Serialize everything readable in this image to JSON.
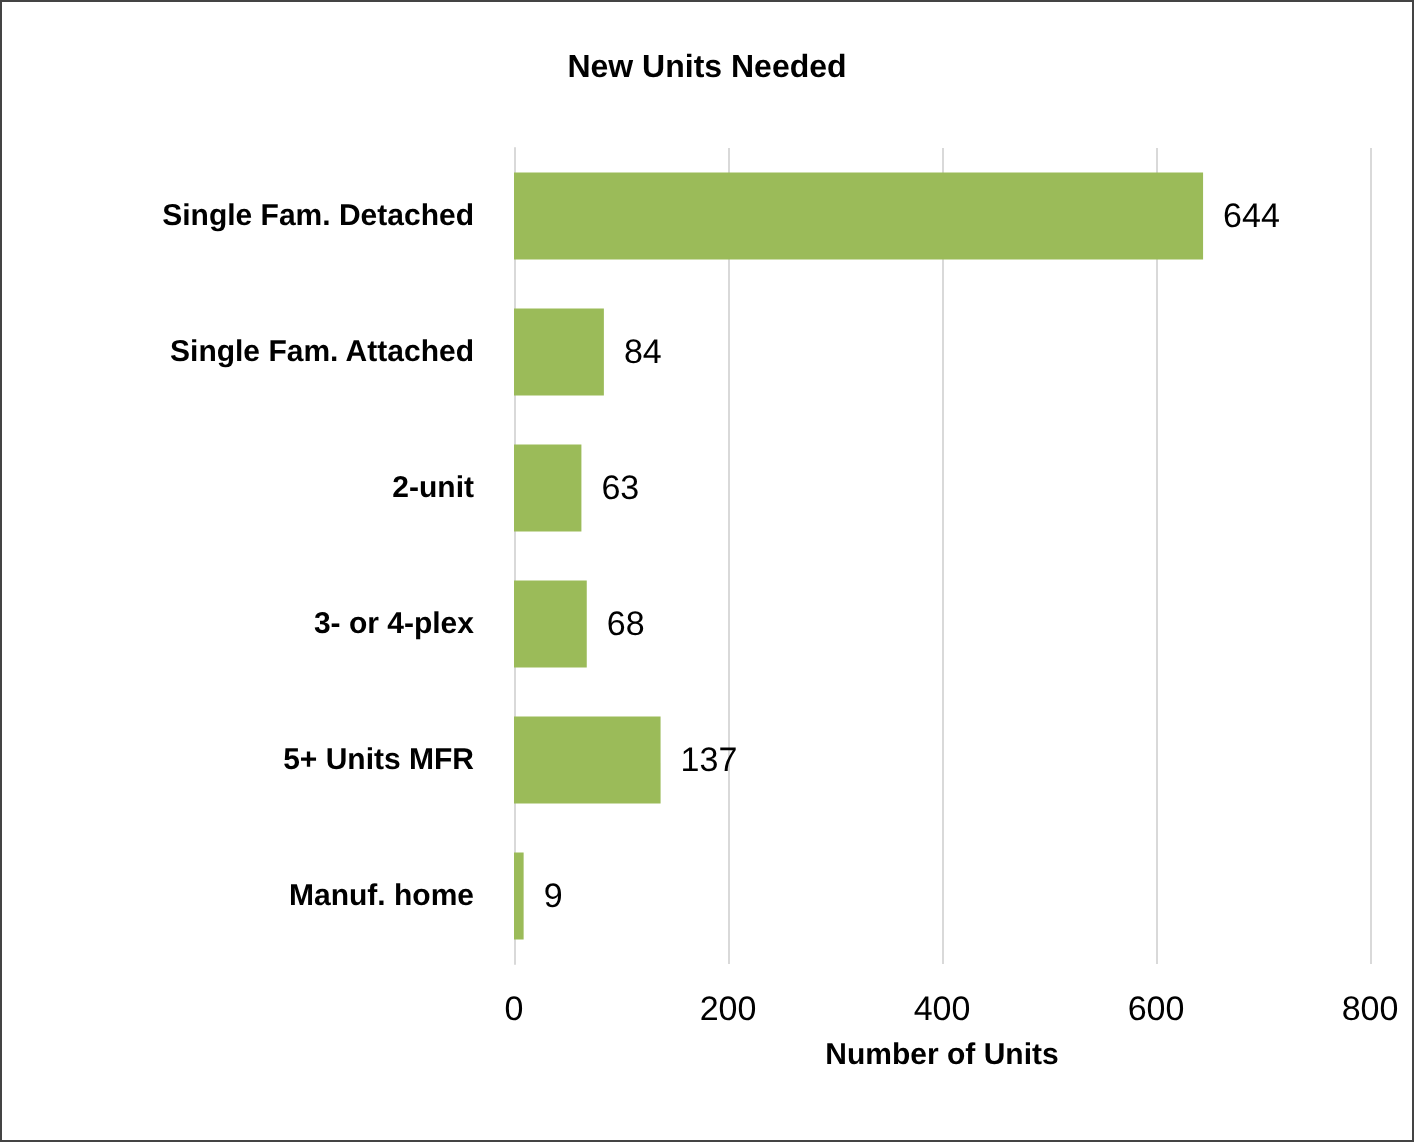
{
  "chart_data": {
    "type": "bar",
    "orientation": "horizontal",
    "title": "New Units Needed",
    "xlabel": "Number of Units",
    "categories": [
      "Single Fam. Detached",
      "Single Fam. Attached",
      "2-unit",
      "3- or 4-plex",
      "5+ Units MFR",
      "Manuf. home"
    ],
    "values": [
      644,
      84,
      63,
      68,
      137,
      9
    ],
    "color": "#9bbb59",
    "xlim": [
      0,
      800
    ],
    "xticks": [
      0,
      200,
      400,
      600,
      800
    ],
    "grid": "x",
    "data_labels": true
  }
}
